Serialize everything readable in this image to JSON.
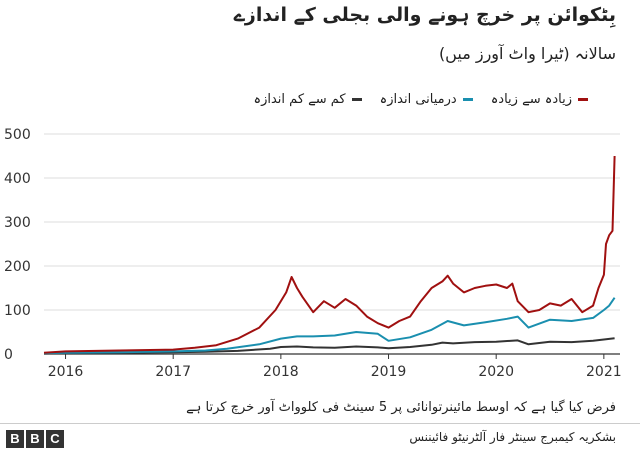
{
  "header": {
    "title": "بِٹکوائن پر خرچ ہونے والی بجلی کے اندازے",
    "subtitle": "سالانہ (ٹیرا واٹ آورز میں)"
  },
  "footer": {
    "note": "فرض کیا گیا ہے کہ اوسط مائینرتوانائی پر 5 سینٹ فی کلوواٹ آور خرچ کرتا ہے",
    "source": "بشکریہ کیمبرج سینٹر فار آلٹرنیٹو فائیننس",
    "logo_letters": [
      "B",
      "B",
      "C"
    ]
  },
  "chart_data": {
    "type": "line",
    "x_ticks": [
      "2016",
      "2017",
      "2018",
      "2019",
      "2020",
      "2021"
    ],
    "x_tick_positions": [
      2016,
      2017,
      2018,
      2019,
      2020,
      2021
    ],
    "y_ticks": [
      0,
      100,
      200,
      300,
      400,
      500
    ],
    "xlim": [
      2015.8,
      2021.15
    ],
    "ylim": [
      0,
      500
    ],
    "grid": "horizontal",
    "legend": "top-right",
    "series": [
      {
        "name": "کم سے کم اندازہ",
        "color": "#333333",
        "x": [
          2015.8,
          2016.0,
          2016.5,
          2017.0,
          2017.3,
          2017.6,
          2017.9,
          2018.0,
          2018.15,
          2018.3,
          2018.5,
          2018.7,
          2018.9,
          2019.0,
          2019.2,
          2019.4,
          2019.5,
          2019.6,
          2019.8,
          2020.0,
          2020.2,
          2020.3,
          2020.5,
          2020.7,
          2020.9,
          2021.0,
          2021.1
        ],
        "values": [
          1,
          2,
          3,
          4,
          5,
          7,
          12,
          16,
          17,
          15,
          14,
          17,
          15,
          13,
          16,
          21,
          26,
          24,
          27,
          28,
          31,
          22,
          28,
          27,
          30,
          33,
          36
        ]
      },
      {
        "name": "درمیانی اندازہ",
        "color": "#1a8faf",
        "x": [
          2015.8,
          2016.0,
          2016.5,
          2017.0,
          2017.3,
          2017.5,
          2017.8,
          2018.0,
          2018.15,
          2018.3,
          2018.5,
          2018.7,
          2018.9,
          2019.0,
          2019.2,
          2019.4,
          2019.55,
          2019.7,
          2019.9,
          2020.1,
          2020.2,
          2020.3,
          2020.5,
          2020.7,
          2020.9,
          2021.0,
          2021.05,
          2021.1
        ],
        "values": [
          2,
          3,
          4,
          6,
          8,
          12,
          22,
          35,
          40,
          40,
          42,
          50,
          46,
          30,
          38,
          55,
          75,
          65,
          72,
          80,
          85,
          60,
          78,
          75,
          82,
          100,
          110,
          128
        ]
      },
      {
        "name": "زیادہ سے زیادہ",
        "color": "#a01010",
        "x": [
          2015.8,
          2016.0,
          2016.5,
          2017.0,
          2017.2,
          2017.4,
          2017.6,
          2017.8,
          2017.95,
          2018.05,
          2018.1,
          2018.15,
          2018.2,
          2018.3,
          2018.4,
          2018.5,
          2018.6,
          2018.7,
          2018.8,
          2018.9,
          2019.0,
          2019.1,
          2019.2,
          2019.3,
          2019.4,
          2019.5,
          2019.55,
          2019.6,
          2019.7,
          2019.8,
          2019.9,
          2020.0,
          2020.1,
          2020.15,
          2020.2,
          2020.3,
          2020.4,
          2020.5,
          2020.6,
          2020.7,
          2020.8,
          2020.9,
          2020.95,
          2021.0,
          2021.02,
          2021.05,
          2021.08,
          2021.1
        ],
        "values": [
          3,
          6,
          8,
          10,
          14,
          20,
          35,
          60,
          100,
          140,
          175,
          150,
          130,
          95,
          120,
          105,
          125,
          110,
          85,
          70,
          60,
          75,
          85,
          120,
          150,
          165,
          178,
          160,
          140,
          150,
          155,
          158,
          150,
          160,
          120,
          95,
          100,
          115,
          110,
          125,
          95,
          110,
          150,
          180,
          250,
          270,
          280,
          450
        ]
      }
    ]
  }
}
